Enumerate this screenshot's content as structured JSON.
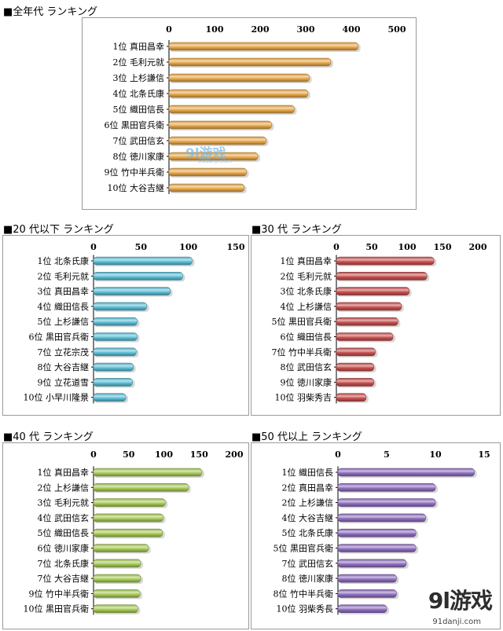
{
  "watermarks": {
    "main": "9l游戏",
    "sub": "91danji.com",
    "mid": "9l游戏",
    "mid_sub": "91danji.com"
  },
  "chart_data": [
    {
      "type": "bar",
      "orientation": "horizontal",
      "title": "■全年代 ランキング",
      "color": "#e8a84a",
      "axis_ticks": [
        0,
        100,
        200,
        300,
        400,
        500
      ],
      "xlim": [
        0,
        500
      ],
      "categories": [
        "1位 真田昌幸",
        "2位 毛利元就",
        "3位 上杉謙信",
        "4位 北条氏康",
        "5位 織田信長",
        "6位 黒田官兵衛",
        "7位 武田信玄",
        "8位 徳川家康",
        "9位 竹中半兵衛",
        "10位 大谷吉継"
      ],
      "values": [
        415,
        355,
        308,
        305,
        275,
        225,
        213,
        195,
        170,
        165
      ]
    },
    {
      "type": "bar",
      "orientation": "horizontal",
      "title": "■20 代以下 ランキング",
      "color": "#5cc0d8",
      "axis_ticks": [
        0,
        50,
        100,
        150
      ],
      "xlim": [
        0,
        150
      ],
      "categories": [
        "1位 北条氏康",
        "2位 毛利元就",
        "3位 真田昌幸",
        "4位 織田信長",
        "5位 上杉謙信",
        "6位 黒田官兵衛",
        "7位 立花宗茂",
        "8位 大谷吉継",
        "9位 立花道雪",
        "10位 小早川隆景"
      ],
      "values": [
        104,
        94,
        81,
        56,
        46,
        46,
        45,
        42,
        41,
        34
      ]
    },
    {
      "type": "bar",
      "orientation": "horizontal",
      "title": "■30 代 ランキング",
      "color": "#c95050",
      "axis_ticks": [
        0,
        50,
        100,
        150,
        200
      ],
      "xlim": [
        0,
        200
      ],
      "categories": [
        "1位 真田昌幸",
        "2位 毛利元就",
        "3位 北条氏康",
        "4位 上杉謙信",
        "5位 黒田官兵衛",
        "6位 織田信長",
        "7位 竹中半兵衛",
        "8位 武田信玄",
        "9位 徳川家康",
        "10位 羽柴秀吉"
      ],
      "values": [
        138,
        128,
        103,
        92,
        87,
        80,
        55,
        53,
        53,
        42
      ]
    },
    {
      "type": "bar",
      "orientation": "horizontal",
      "title": "■40 代 ランキング",
      "color": "#a8cc58",
      "axis_ticks": [
        0,
        50,
        100,
        150,
        200
      ],
      "xlim": [
        0,
        200
      ],
      "categories": [
        "1位 真田昌幸",
        "2位 上杉謙信",
        "3位 毛利元就",
        "4位 武田信玄",
        "5位 織田信長",
        "6位 徳川家康",
        "7位 北条氏康",
        "7位 大谷吉継",
        "9位 竹中半兵衛",
        "10位 黒田官兵衛"
      ],
      "values": [
        154,
        135,
        102,
        99,
        98,
        78,
        67,
        67,
        66,
        63
      ]
    },
    {
      "type": "bar",
      "orientation": "horizontal",
      "title": "■50 代以上 ランキング",
      "color": "#9070c0",
      "axis_ticks": [
        0,
        5,
        10,
        15
      ],
      "xlim": [
        0,
        15
      ],
      "categories": [
        "1位 織田信長",
        "2位 真田昌幸",
        "2位 上杉謙信",
        "4位 大谷吉継",
        "5位 北条氏康",
        "5位 黒田官兵衛",
        "7位 武田信玄",
        "8位 徳川家康",
        "8位 竹中半兵衛",
        "10位 羽柴秀長"
      ],
      "values": [
        14,
        10,
        10,
        9,
        8,
        8,
        7,
        6,
        6,
        5
      ]
    }
  ]
}
